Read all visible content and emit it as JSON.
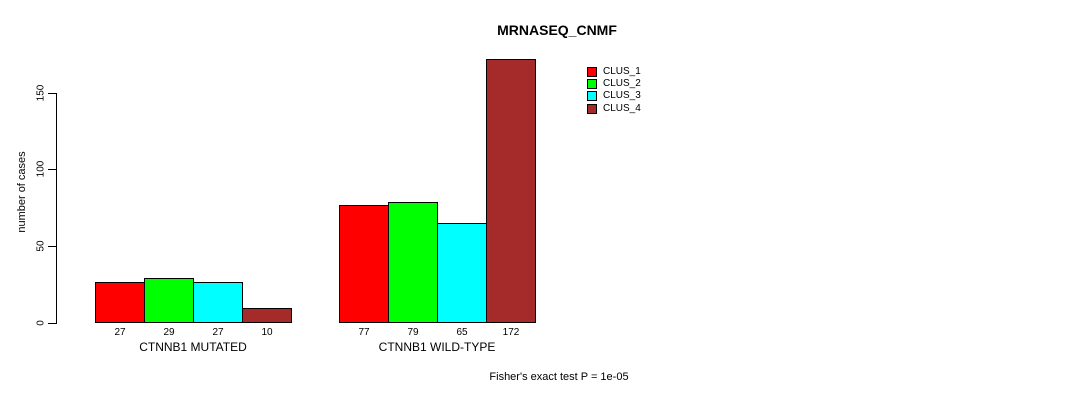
{
  "title": "MRNASEQ_CNMF",
  "y_axis": {
    "label": "number of cases",
    "ticks": [
      0,
      50,
      100,
      150
    ]
  },
  "legend": [
    {
      "label": "CLUS_1",
      "color": "#FF0000"
    },
    {
      "label": "CLUS_2",
      "color": "#00FF00"
    },
    {
      "label": "CLUS_3",
      "color": "#00FFFF"
    },
    {
      "label": "CLUS_4",
      "color": "#A52A2A"
    }
  ],
  "footer": "Fisher's exact test P = 1e-05",
  "chart_data": {
    "type": "bar",
    "title": "MRNASEQ_CNMF",
    "xlabel": "",
    "ylabel": "number of cases",
    "ylim": [
      0,
      175
    ],
    "yticks": [
      0,
      50,
      100,
      150
    ],
    "grid": false,
    "legend_position": "top-right",
    "categories": [
      "CTNNB1 MUTATED",
      "CTNNB1 WILD-TYPE"
    ],
    "series": [
      {
        "name": "CLUS_1",
        "color": "#FF0000",
        "values": [
          27,
          77
        ]
      },
      {
        "name": "CLUS_2",
        "color": "#00FF00",
        "values": [
          29,
          79
        ]
      },
      {
        "name": "CLUS_3",
        "color": "#00FFFF",
        "values": [
          27,
          65
        ]
      },
      {
        "name": "CLUS_4",
        "color": "#A52A2A",
        "values": [
          10,
          172
        ]
      }
    ],
    "bar_value_labels": [
      [
        27,
        29,
        27,
        10
      ],
      [
        77,
        79,
        65,
        172
      ]
    ],
    "annotation": "Fisher's exact test P = 1e-05"
  }
}
